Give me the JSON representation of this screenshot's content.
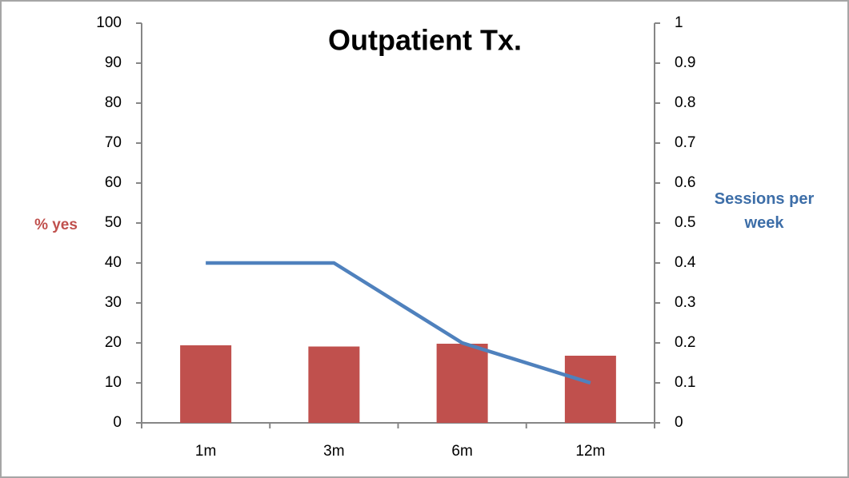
{
  "chart_data": {
    "type": "combo",
    "title": "Outpatient Tx.",
    "categories": [
      "1m",
      "3m",
      "6m",
      "12m"
    ],
    "y_label": "% yes",
    "y2_label": "Sessions per week",
    "series": [
      {
        "name": "% yes",
        "type": "bar",
        "color": "#c0504d",
        "values": [
          19.4,
          19.1,
          19.8,
          16.8
        ]
      },
      {
        "name": "Sessions per week",
        "type": "line",
        "axis": "y2",
        "color": "#4f81bd",
        "values": [
          0.4,
          0.4,
          0.2,
          0.1
        ]
      }
    ],
    "ylim": [
      0,
      100
    ],
    "yticks": [
      0,
      10,
      20,
      30,
      40,
      50,
      60,
      70,
      80,
      90,
      100
    ],
    "y2lim": [
      0,
      1
    ],
    "y2ticks": [
      0,
      0.1,
      0.2,
      0.3,
      0.4,
      0.5,
      0.6,
      0.7,
      0.8,
      0.9,
      1
    ],
    "grid": false
  }
}
